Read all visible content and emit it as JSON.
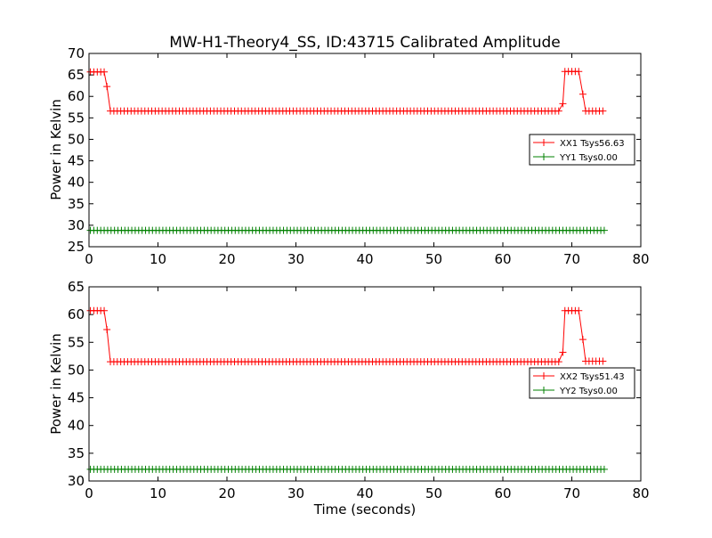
{
  "title": "MW-H1-Theory4_SS, ID:43715 Calibrated Amplitude",
  "colors": {
    "red": "#ff0000",
    "green": "#008000",
    "axis": "#000000",
    "background": "#ffffff"
  },
  "chart_data": [
    {
      "type": "line",
      "ylabel": "Power in Kelvin",
      "xlabel": "",
      "xlim": [
        0,
        80
      ],
      "ylim": [
        25,
        70
      ],
      "xticks": [
        "0",
        "10",
        "20",
        "30",
        "40",
        "50",
        "60",
        "70",
        "80"
      ],
      "yticks": [
        "25",
        "30",
        "35",
        "40",
        "45",
        "50",
        "55",
        "60",
        "65",
        "70"
      ],
      "grid": false,
      "legend_position": "right",
      "marker": "+",
      "series": [
        {
          "name": "XX1 Tsys56.63",
          "color": "#ff0000",
          "segments": [
            {
              "x_start": 0.2,
              "x_end": 2.4,
              "y": 65.7
            },
            {
              "x_start": 2.6,
              "x_end": 2.6,
              "y": 62.3
            },
            {
              "x_start": 3.1,
              "x_end": 68.4,
              "y": 56.6
            },
            {
              "x_start": 68.7,
              "x_end": 68.7,
              "y": 58.3
            },
            {
              "x_start": 69.0,
              "x_end": 71.3,
              "y": 65.8
            },
            {
              "x_start": 71.6,
              "x_end": 71.6,
              "y": 60.5
            },
            {
              "x_start": 72.0,
              "x_end": 74.8,
              "y": 56.6
            }
          ]
        },
        {
          "name": "YY1 Tsys0.00",
          "color": "#008000",
          "segments": [
            {
              "x_start": 0.2,
              "x_end": 74.8,
              "y": 28.8
            }
          ]
        }
      ]
    },
    {
      "type": "line",
      "ylabel": "Power in Kelvin",
      "xlabel": "Time (seconds)",
      "xlim": [
        0,
        80
      ],
      "ylim": [
        30,
        65
      ],
      "xticks": [
        "0",
        "10",
        "20",
        "30",
        "40",
        "50",
        "60",
        "70",
        "80"
      ],
      "yticks": [
        "30",
        "35",
        "40",
        "45",
        "50",
        "55",
        "60",
        "65"
      ],
      "grid": false,
      "legend_position": "right",
      "marker": "+",
      "series": [
        {
          "name": "XX2 Tsys51.43",
          "color": "#ff0000",
          "segments": [
            {
              "x_start": 0.2,
              "x_end": 2.4,
              "y": 60.7
            },
            {
              "x_start": 2.6,
              "x_end": 2.6,
              "y": 57.3
            },
            {
              "x_start": 3.1,
              "x_end": 68.4,
              "y": 51.5
            },
            {
              "x_start": 68.7,
              "x_end": 68.7,
              "y": 53.2
            },
            {
              "x_start": 69.0,
              "x_end": 71.3,
              "y": 60.7
            },
            {
              "x_start": 71.6,
              "x_end": 71.6,
              "y": 55.5
            },
            {
              "x_start": 72.0,
              "x_end": 74.8,
              "y": 51.6
            }
          ]
        },
        {
          "name": "YY2 Tsys0.00",
          "color": "#008000",
          "segments": [
            {
              "x_start": 0.2,
              "x_end": 74.8,
              "y": 32.1
            }
          ]
        }
      ]
    }
  ]
}
